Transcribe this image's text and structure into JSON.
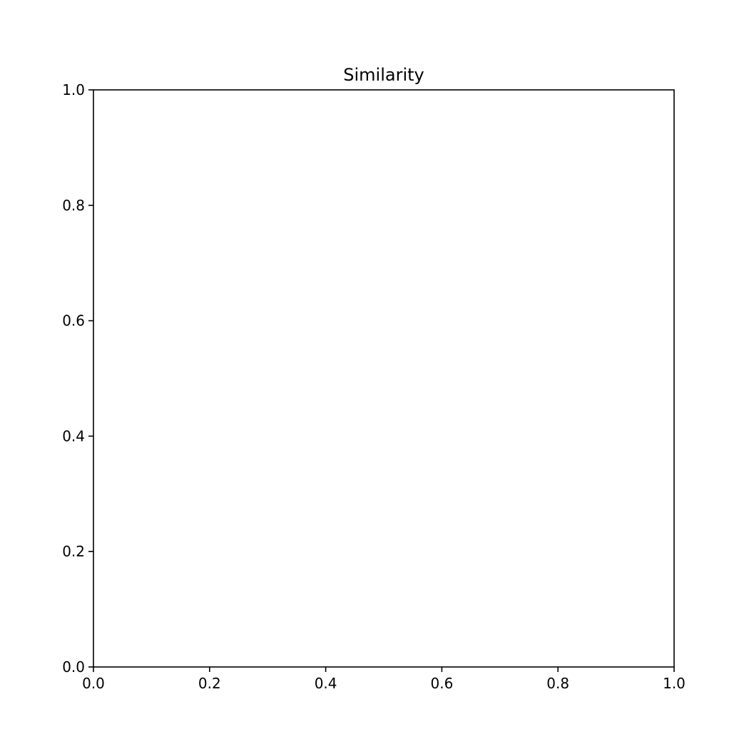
{
  "chart_data": {
    "type": "scatter",
    "title": "Similarity",
    "xlabel": "",
    "ylabel": "",
    "xlim": [
      0.0,
      1.0
    ],
    "ylim": [
      0.0,
      1.0
    ],
    "xticks": [
      "0.0",
      "0.2",
      "0.4",
      "0.6",
      "0.8",
      "1.0"
    ],
    "yticks": [
      "0.0",
      "0.2",
      "0.4",
      "0.6",
      "0.8",
      "1.0"
    ],
    "grid": false,
    "series": []
  }
}
